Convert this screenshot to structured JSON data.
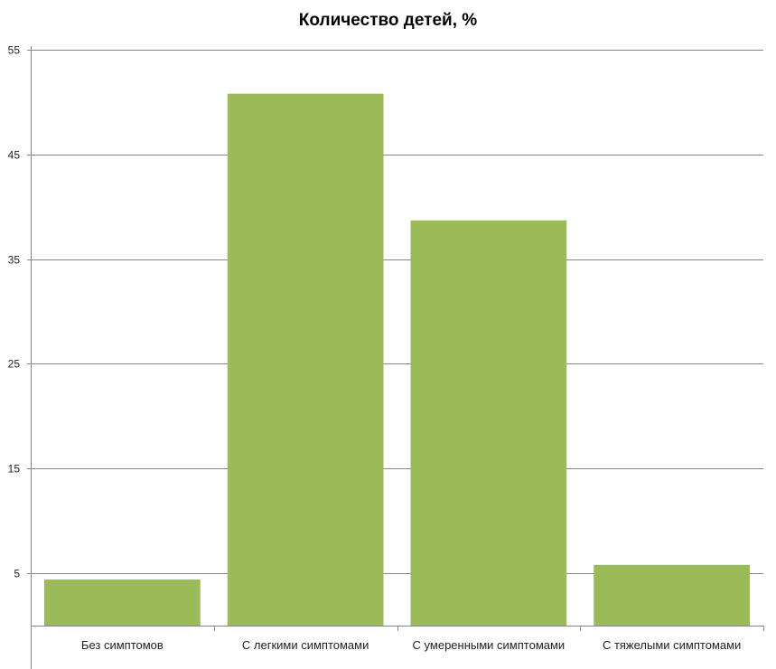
{
  "chart_data": {
    "type": "bar",
    "title": "Количество детей, %",
    "categories": [
      "Без симптомов",
      "С легкими симптомами",
      "С умеренными симптомами",
      "С тяжелыми симптомами"
    ],
    "values": [
      4.4,
      50.8,
      38.7,
      5.8
    ],
    "xlabel": "",
    "ylabel": "",
    "ylim": [
      0,
      55
    ],
    "yticks": [
      5,
      15,
      25,
      35,
      45,
      55
    ],
    "grid": true,
    "bar_color": "#9bbb59"
  }
}
